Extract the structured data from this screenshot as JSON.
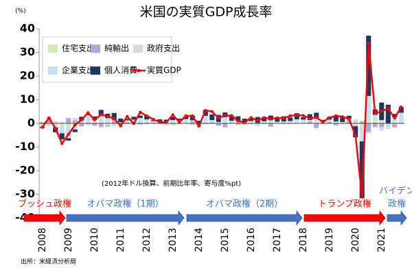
{
  "chart_data": {
    "type": "bar",
    "title": "米国の実質GDP成長率",
    "y_unit": "(%)",
    "note": "(2012年ドル換算、前期比年率、寄与度%pt)",
    "source": "出所：米経済分析局",
    "ylim": [
      -40,
      40
    ],
    "yticks": [
      -40,
      -30,
      -20,
      -10,
      0,
      10,
      20,
      30,
      40
    ],
    "legend": "top-left",
    "categories": [
      "2008",
      null,
      null,
      null,
      "2009",
      null,
      null,
      null,
      "2010",
      null,
      null,
      null,
      "2011",
      null,
      null,
      null,
      "2012",
      null,
      null,
      null,
      "2013",
      null,
      null,
      null,
      "2014",
      null,
      null,
      null,
      "2015",
      null,
      null,
      null,
      "2016",
      null,
      null,
      null,
      "2017",
      null,
      null,
      null,
      "2018",
      null,
      null,
      null,
      "2019",
      null,
      null,
      null,
      "2020",
      null,
      null,
      null,
      "2021",
      null,
      null,
      null
    ],
    "series": [
      {
        "name": "住宅支出",
        "color": "#d4e9b8",
        "mark": "bar",
        "values": [
          -1.0,
          -0.6,
          -0.7,
          -1.2,
          -1.3,
          -0.6,
          0.4,
          -0.2,
          -0.1,
          0.6,
          -0.9,
          0.1,
          -0.1,
          0.1,
          0.1,
          0.3,
          0.4,
          0.2,
          0.4,
          0.5,
          0.4,
          0.5,
          0.3,
          0.2,
          0.1,
          0.3,
          0.1,
          0.3,
          0.5,
          0.3,
          0.5,
          0.4,
          0.5,
          -0.2,
          -0.2,
          0.3,
          0.4,
          -0.2,
          -0.2,
          0.4,
          0.0,
          -0.1,
          -0.2,
          -0.2,
          -0.1,
          -0.1,
          0.2,
          0.2,
          0.7,
          -1.6,
          2.1,
          1.1,
          0.6,
          -0.6,
          -0.4,
          -0.1
        ]
      },
      {
        "name": "純輸出",
        "color": "#b6a6d4",
        "mark": "bar",
        "values": [
          0.4,
          2.0,
          0.2,
          0.1,
          2.2,
          1.3,
          -1.3,
          -0.2,
          -0.8,
          -1.6,
          -0.5,
          1.5,
          -0.4,
          0.4,
          0.0,
          -0.3,
          0.1,
          0.3,
          0.0,
          0.4,
          -0.1,
          0.0,
          0.0,
          0.6,
          -1.2,
          -0.3,
          0.4,
          -1.0,
          -1.7,
          -0.1,
          -0.5,
          -0.4,
          0.0,
          0.2,
          0.3,
          -1.4,
          0.1,
          -0.1,
          0.0,
          -0.1,
          0.0,
          0.7,
          -1.8,
          -0.1,
          0.6,
          -0.6,
          -0.1,
          1.4,
          0.2,
          0.7,
          -3.5,
          -1.6,
          -1.6,
          -0.2,
          -1.3,
          -0.1
        ]
      },
      {
        "name": "政府支出",
        "color": "#d9d9d9",
        "mark": "bar",
        "values": [
          0.4,
          0.5,
          0.8,
          0.5,
          0.1,
          1.0,
          0.4,
          -0.3,
          -0.4,
          0.8,
          0.2,
          -0.6,
          -1.4,
          -0.5,
          -0.5,
          -0.4,
          -0.4,
          -0.1,
          0.5,
          -0.5,
          -0.8,
          -0.3,
          -0.1,
          -0.8,
          -0.2,
          0.4,
          0.4,
          -0.1,
          0.6,
          0.5,
          0.4,
          0.1,
          0.5,
          -0.3,
          0.1,
          0.0,
          0.0,
          0.3,
          0.0,
          0.5,
          0.4,
          0.3,
          0.4,
          0.1,
          0.4,
          0.8,
          0.4,
          0.4,
          0.8,
          0.6,
          -0.7,
          -0.1,
          0.8,
          -0.4,
          0.1,
          0.0
        ]
      },
      {
        "name": "企業支出",
        "color": "#c6e1ef",
        "mark": "bar",
        "values": [
          -0.5,
          -0.6,
          -1.0,
          -3.0,
          -5.0,
          -2.0,
          0.5,
          3.5,
          1.5,
          2.0,
          2.0,
          -0.5,
          0.5,
          0.8,
          1.5,
          2.0,
          1.2,
          0.5,
          -0.3,
          -0.5,
          1.0,
          0.8,
          1.5,
          0.5,
          -0.5,
          2.5,
          0.5,
          0.3,
          1.5,
          0.3,
          0.0,
          -0.3,
          -0.5,
          -0.6,
          0.5,
          1.0,
          0.2,
          0.5,
          1.0,
          0.8,
          1.2,
          0.4,
          1.8,
          0.5,
          0.6,
          -0.5,
          -0.3,
          -0.4,
          -1.2,
          -6.0,
          9.5,
          2.5,
          -1.5,
          -1.2,
          2.5,
          4.5
        ]
      },
      {
        "name": "個人消費",
        "color": "#1f3763",
        "mark": "bar",
        "values": [
          -0.5,
          0.1,
          -2.1,
          -2.6,
          -1.0,
          -1.1,
          1.5,
          0.4,
          1.4,
          2.3,
          1.9,
          2.8,
          1.5,
          0.6,
          1.2,
          1.0,
          1.6,
          0.4,
          0.8,
          0.7,
          1.3,
          0.7,
          1.2,
          2.0,
          1.0,
          2.5,
          2.4,
          3.0,
          2.0,
          2.2,
          2.1,
          1.5,
          1.3,
          2.5,
          1.8,
          2.0,
          1.3,
          2.2,
          1.5,
          2.6,
          1.0,
          2.5,
          2.3,
          0.9,
          1.1,
          2.5,
          2.1,
          1.2,
          -4.7,
          -24.0,
          25.5,
          2.3,
          7.4,
          7.9,
          1.4,
          2.5
        ]
      },
      {
        "name": "実質GDP",
        "color": "#ff0000",
        "mark": "line",
        "values": [
          -1.6,
          2.3,
          -2.1,
          -8.5,
          -4.6,
          -0.7,
          1.5,
          4.5,
          1.5,
          3.7,
          3.0,
          2.0,
          -1.0,
          2.9,
          -0.1,
          4.7,
          3.2,
          1.7,
          0.5,
          0.5,
          3.6,
          0.5,
          3.2,
          3.2,
          -1.1,
          5.5,
          5.0,
          2.3,
          3.3,
          3.3,
          1.0,
          0.4,
          2.4,
          1.2,
          2.4,
          2.0,
          2.3,
          2.2,
          3.2,
          3.5,
          3.3,
          2.1,
          2.5,
          0.6,
          2.4,
          3.2,
          2.8,
          1.9,
          -5.1,
          -31.2,
          33.8,
          4.2,
          5.2,
          6.2,
          2.3,
          6.9
        ]
      }
    ],
    "administrations": [
      {
        "label": [
          "ブッシュ政権"
        ],
        "color": "#ff0000"
      },
      {
        "label": [
          "オバマ政権（1期）"
        ],
        "color": "#4472c4"
      },
      {
        "label": [
          "オバマ政権（2期）"
        ],
        "color": "#4472c4"
      },
      {
        "label": [
          "トランプ政権"
        ],
        "color": "#ff0000"
      },
      {
        "label": [
          "バイデン",
          "政権"
        ],
        "color": "#4472c4"
      }
    ]
  }
}
